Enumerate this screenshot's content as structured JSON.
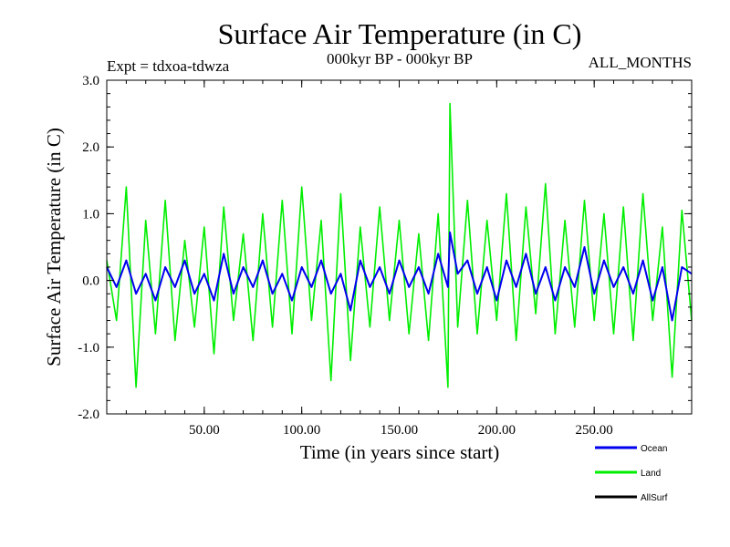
{
  "chart_data": {
    "type": "line",
    "title": "Surface Air Temperature (in C)",
    "subtitle_left": "Expt = tdxoa-tdwza",
    "subtitle_center": "000kyr BP - 000kyr BP",
    "subtitle_right": "ALL_MONTHS",
    "xlabel": "Time (in years since start)",
    "ylabel": "Surface Air Temperature (in C)",
    "xlim": [
      0,
      300
    ],
    "ylim": [
      -2.0,
      3.0
    ],
    "xticks": [
      50,
      100,
      150,
      200,
      250
    ],
    "xtick_labels": [
      "50.00",
      "100.00",
      "150.00",
      "200.00",
      "250.00"
    ],
    "yticks": [
      -2.0,
      -1.0,
      0.0,
      1.0,
      2.0,
      3.0
    ],
    "ytick_labels": [
      "-2.0",
      "-1.0",
      "0.0",
      "1.0",
      "2.0",
      "3.0"
    ],
    "grid": false,
    "legend_position": "bottom-right",
    "series": [
      {
        "name": "Land",
        "color": "#00ee00",
        "x": [
          0,
          5,
          10,
          15,
          20,
          25,
          30,
          35,
          40,
          45,
          50,
          55,
          60,
          65,
          70,
          75,
          80,
          85,
          90,
          95,
          100,
          105,
          110,
          115,
          120,
          125,
          130,
          135,
          140,
          145,
          150,
          155,
          160,
          165,
          170,
          175,
          176,
          180,
          185,
          190,
          195,
          200,
          205,
          210,
          215,
          220,
          225,
          230,
          235,
          240,
          245,
          250,
          255,
          260,
          265,
          270,
          275,
          280,
          285,
          290,
          295,
          300
        ],
        "values": [
          0.3,
          -0.6,
          1.4,
          -1.6,
          0.9,
          -0.8,
          1.2,
          -0.9,
          0.6,
          -0.7,
          0.8,
          -1.1,
          1.1,
          -0.6,
          0.7,
          -0.9,
          1.0,
          -0.7,
          1.2,
          -0.8,
          1.4,
          -0.6,
          0.9,
          -1.5,
          1.3,
          -1.2,
          0.8,
          -0.7,
          1.1,
          -0.6,
          0.9,
          -0.8,
          0.7,
          -0.9,
          1.0,
          -1.6,
          2.65,
          -0.7,
          1.2,
          -0.8,
          0.9,
          -0.6,
          1.3,
          -0.9,
          1.1,
          -0.5,
          1.45,
          -0.8,
          0.9,
          -0.7,
          1.2,
          -0.6,
          1.0,
          -0.8,
          1.1,
          -0.9,
          1.3,
          -0.6,
          0.8,
          -1.45,
          1.05,
          -0.6
        ]
      },
      {
        "name": "Ocean",
        "color": "#0000ee",
        "x": [
          0,
          5,
          10,
          15,
          20,
          25,
          30,
          35,
          40,
          45,
          50,
          55,
          60,
          65,
          70,
          75,
          80,
          85,
          90,
          95,
          100,
          105,
          110,
          115,
          120,
          125,
          130,
          135,
          140,
          145,
          150,
          155,
          160,
          165,
          170,
          175,
          176,
          180,
          185,
          190,
          195,
          200,
          205,
          210,
          215,
          220,
          225,
          230,
          235,
          240,
          245,
          250,
          255,
          260,
          265,
          270,
          275,
          280,
          285,
          290,
          295,
          300
        ],
        "values": [
          0.2,
          -0.1,
          0.3,
          -0.2,
          0.1,
          -0.3,
          0.2,
          -0.1,
          0.3,
          -0.2,
          0.1,
          -0.3,
          0.4,
          -0.2,
          0.2,
          -0.1,
          0.3,
          -0.2,
          0.1,
          -0.3,
          0.2,
          -0.1,
          0.3,
          -0.2,
          0.1,
          -0.45,
          0.3,
          -0.1,
          0.2,
          -0.2,
          0.3,
          -0.1,
          0.2,
          -0.2,
          0.4,
          -0.1,
          0.72,
          0.1,
          0.3,
          -0.2,
          0.2,
          -0.3,
          0.3,
          -0.1,
          0.4,
          -0.2,
          0.2,
          -0.3,
          0.2,
          -0.1,
          0.5,
          -0.2,
          0.3,
          -0.1,
          0.2,
          -0.2,
          0.3,
          -0.3,
          0.2,
          -0.6,
          0.2,
          0.1
        ]
      },
      {
        "name": "AllSurf",
        "color": "#000000",
        "x": [],
        "values": []
      }
    ]
  }
}
